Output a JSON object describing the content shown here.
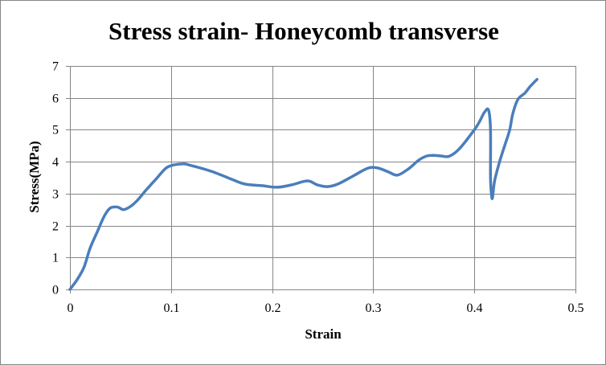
{
  "chart_data": {
    "type": "line",
    "title": "Stress strain- Honeycomb transverse",
    "xlabel": "Strain",
    "ylabel": "Stress(MPa)",
    "xlim": [
      0,
      0.5
    ],
    "ylim": [
      0,
      7
    ],
    "x_ticks": [
      0,
      0.1,
      0.2,
      0.3,
      0.4,
      0.5
    ],
    "x_tick_labels": [
      "0",
      "0.1",
      "0.2",
      "0.3",
      "0.4",
      "0.5"
    ],
    "y_ticks": [
      0,
      1,
      2,
      3,
      4,
      5,
      6,
      7
    ],
    "y_tick_labels": [
      "0",
      "1",
      "2",
      "3",
      "4",
      "5",
      "6",
      "7"
    ],
    "grid": true,
    "legend": "none",
    "series": [
      {
        "color": "#4a7ebb",
        "points": [
          [
            0,
            0
          ],
          [
            0.007,
            0.3
          ],
          [
            0.014,
            0.7
          ],
          [
            0.02,
            1.3
          ],
          [
            0.027,
            1.8
          ],
          [
            0.034,
            2.3
          ],
          [
            0.04,
            2.55
          ],
          [
            0.047,
            2.58
          ],
          [
            0.053,
            2.5
          ],
          [
            0.06,
            2.6
          ],
          [
            0.067,
            2.8
          ],
          [
            0.075,
            3.1
          ],
          [
            0.085,
            3.45
          ],
          [
            0.095,
            3.8
          ],
          [
            0.103,
            3.9
          ],
          [
            0.113,
            3.93
          ],
          [
            0.12,
            3.88
          ],
          [
            0.14,
            3.7
          ],
          [
            0.16,
            3.45
          ],
          [
            0.173,
            3.3
          ],
          [
            0.19,
            3.25
          ],
          [
            0.205,
            3.2
          ],
          [
            0.22,
            3.28
          ],
          [
            0.235,
            3.4
          ],
          [
            0.245,
            3.27
          ],
          [
            0.255,
            3.22
          ],
          [
            0.265,
            3.3
          ],
          [
            0.28,
            3.55
          ],
          [
            0.295,
            3.8
          ],
          [
            0.305,
            3.8
          ],
          [
            0.315,
            3.68
          ],
          [
            0.324,
            3.58
          ],
          [
            0.335,
            3.78
          ],
          [
            0.345,
            4.05
          ],
          [
            0.353,
            4.18
          ],
          [
            0.36,
            4.2
          ],
          [
            0.367,
            4.18
          ],
          [
            0.375,
            4.17
          ],
          [
            0.385,
            4.4
          ],
          [
            0.4,
            5.0
          ],
          [
            0.405,
            5.25
          ],
          [
            0.41,
            5.55
          ],
          [
            0.414,
            5.62
          ],
          [
            0.416,
            5.0
          ],
          [
            0.416,
            3.5
          ],
          [
            0.417,
            2.95
          ],
          [
            0.418,
            2.88
          ],
          [
            0.42,
            3.4
          ],
          [
            0.425,
            4.0
          ],
          [
            0.43,
            4.5
          ],
          [
            0.435,
            5.0
          ],
          [
            0.438,
            5.5
          ],
          [
            0.443,
            5.95
          ],
          [
            0.45,
            6.15
          ],
          [
            0.455,
            6.35
          ],
          [
            0.462,
            6.58
          ]
        ]
      }
    ]
  }
}
